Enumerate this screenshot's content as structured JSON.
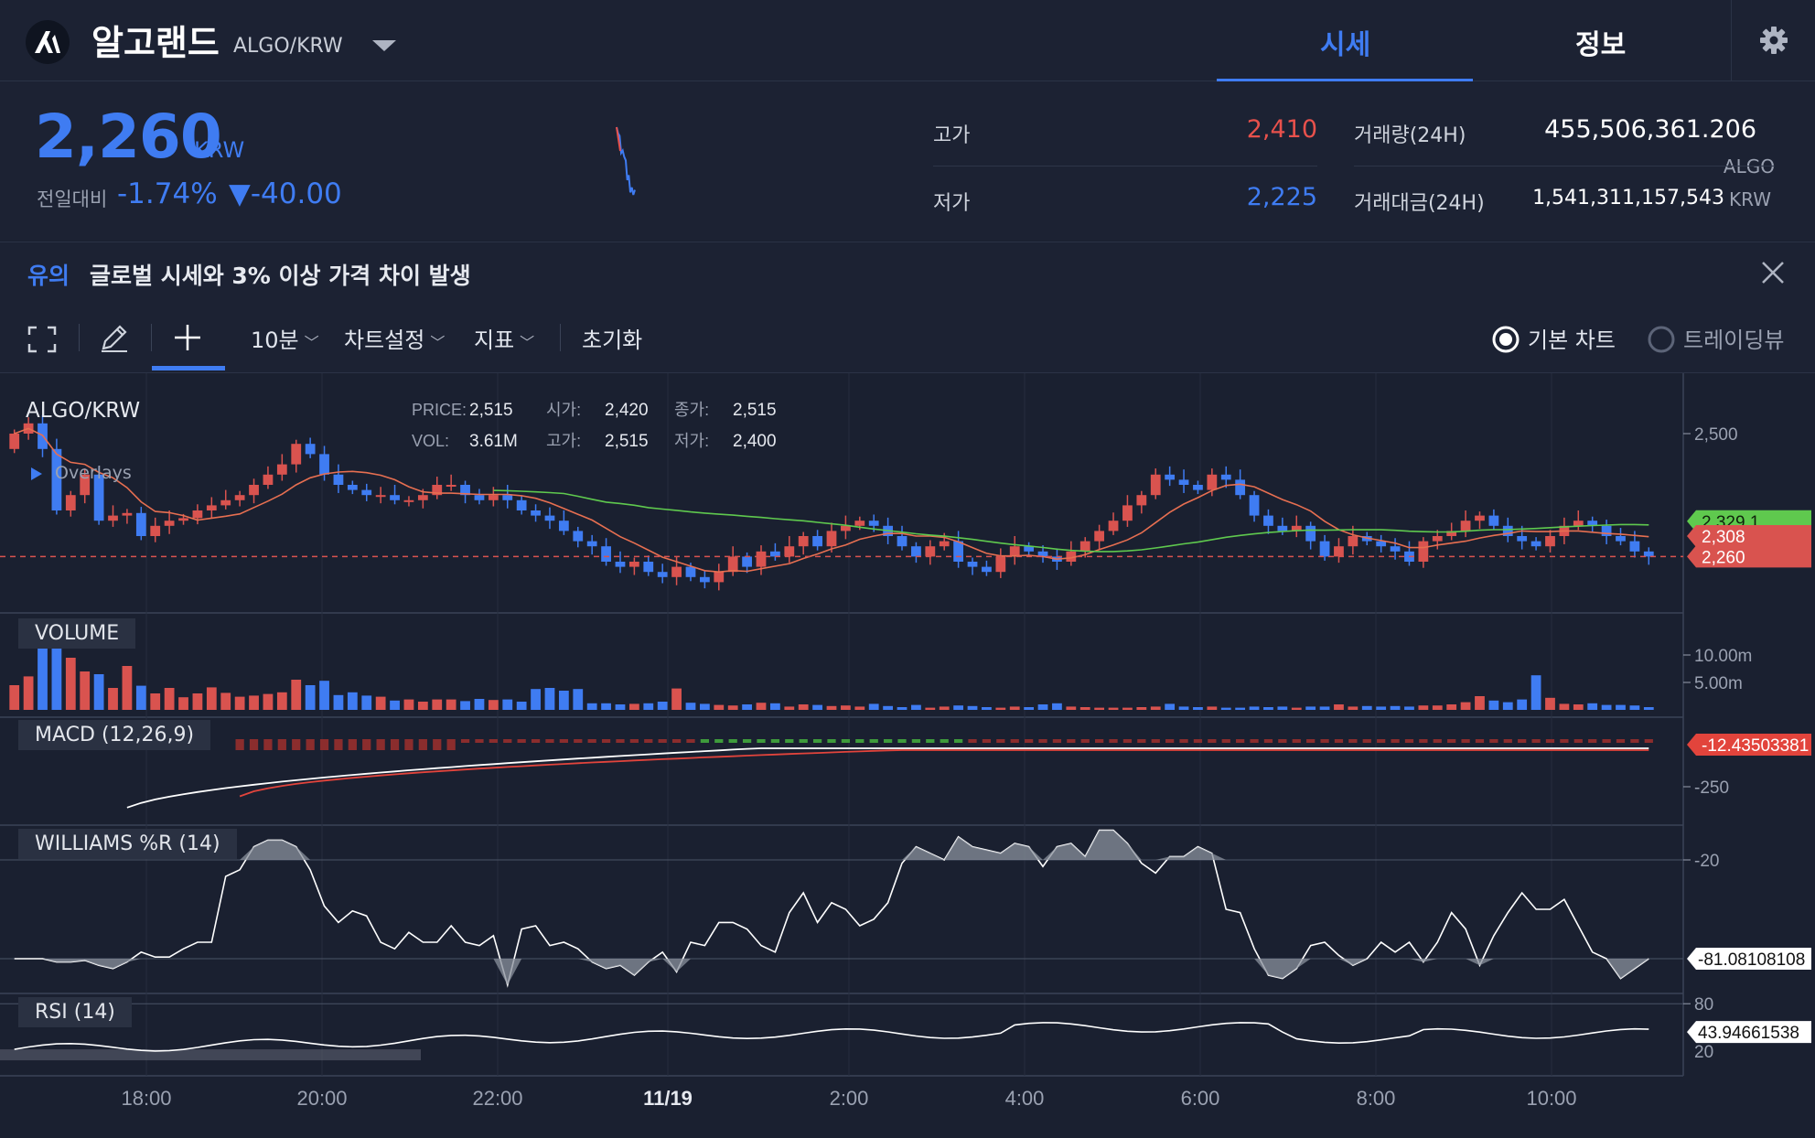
{
  "header": {
    "coin_name": "알고랜드",
    "pair": "ALGO/KRW",
    "tabs": [
      {
        "label": "시세",
        "active": true
      },
      {
        "label": "정보",
        "active": false
      }
    ]
  },
  "summary": {
    "price": "2,260",
    "unit": "KRW",
    "change_label": "전일대비",
    "change_rate": "-1.74%",
    "change_amount": "▼-40.00",
    "high_label": "고가",
    "high_value": "2,410",
    "low_label": "저가",
    "low_value": "2,225",
    "volume_label": "거래량(24H)",
    "volume_value": "455,506,361.206",
    "volume_unit": "ALGO",
    "amount_label": "거래대금(24H)",
    "amount_value": "1,541,311,157,543",
    "amount_unit": "KRW",
    "sparkline": [
      2515,
      2490,
      2480,
      2410,
      2420,
      2395,
      2380,
      2300,
      2320,
      2250,
      2270,
      2240,
      2260
    ]
  },
  "notice": {
    "tag": "유의",
    "text": "글로벌 시세와 3% 이상 가격 차이 발생"
  },
  "toolbar": {
    "interval": "10분",
    "chart_settings": "차트설정",
    "indicators": "지표",
    "reset": "초기화",
    "mode_basic": "기본 차트",
    "mode_tradingview": "트레이딩뷰",
    "mode_selected": "기본 차트"
  },
  "chart": {
    "symbol": "ALGO/KRW",
    "overlays_label": "Overlays",
    "ohlc": {
      "price_key": "PRICE:",
      "price": "2,515",
      "open_key": "시가:",
      "open": "2,420",
      "close_key": "종가:",
      "close": "2,515",
      "vol_key": "VOL:",
      "vol": "3.61M",
      "high_key": "고가:",
      "high": "2,515",
      "low_key": "저가:",
      "low": "2,400"
    },
    "time_labels": [
      "18:00",
      "20:00",
      "22:00",
      "11/19",
      "2:00",
      "4:00",
      "6:00",
      "8:00",
      "10:00"
    ],
    "price_axis": [
      "2,500"
    ],
    "volume_axis": [
      "10.00m",
      "5.00m"
    ],
    "macd_axis": [
      "-250"
    ],
    "williams_axis": [
      "-20"
    ],
    "rsi_axis": [
      "80",
      "20"
    ],
    "tags": {
      "ma_long": "2,329.1",
      "ma_short": "2,308",
      "last_price": "2,260",
      "macd": "-12.43503381",
      "williams": "-81.08108108",
      "rsi": "43.94661538"
    },
    "panes": {
      "volume": "VOLUME",
      "macd": "MACD (12,26,9)",
      "williams": "WILLIAMS %R (14)",
      "rsi": "RSI (14)"
    }
  },
  "chart_data": {
    "type": "candlestick",
    "interval": "10분",
    "closes": [
      2500,
      2520,
      2470,
      2350,
      2380,
      2420,
      2330,
      2340,
      2345,
      2300,
      2320,
      2330,
      2335,
      2350,
      2360,
      2370,
      2380,
      2400,
      2420,
      2440,
      2480,
      2460,
      2420,
      2400,
      2390,
      2380,
      2380,
      2370,
      2370,
      2380,
      2400,
      2400,
      2380,
      2370,
      2380,
      2370,
      2350,
      2340,
      2330,
      2310,
      2290,
      2280,
      2250,
      2240,
      2250,
      2230,
      2220,
      2240,
      2220,
      2210,
      2230,
      2260,
      2240,
      2270,
      2260,
      2280,
      2300,
      2280,
      2310,
      2320,
      2330,
      2320,
      2300,
      2280,
      2260,
      2280,
      2290,
      2250,
      2240,
      2230,
      2260,
      2280,
      2270,
      2260,
      2250,
      2270,
      2290,
      2310,
      2330,
      2360,
      2380,
      2420,
      2410,
      2400,
      2390,
      2420,
      2410,
      2380,
      2340,
      2320,
      2310,
      2320,
      2290,
      2260,
      2280,
      2300,
      2290,
      2280,
      2270,
      2250,
      2290,
      2300,
      2310,
      2330,
      2340,
      2320,
      2300,
      2290,
      2280,
      2300,
      2320,
      2330,
      2320,
      2300,
      2290,
      2270,
      2260
    ],
    "volumes_m": [
      4.5,
      6.1,
      12.0,
      11.5,
      9.5,
      7.0,
      6.5,
      4.0,
      8.0,
      4.4,
      3.0,
      4.0,
      2.3,
      3.0,
      4.1,
      3.1,
      2.4,
      2.6,
      2.9,
      3.2,
      5.5,
      4.5,
      5.3,
      2.7,
      3.2,
      2.6,
      2.4,
      1.7,
      1.9,
      1.5,
      1.9,
      1.9,
      1.6,
      2.0,
      1.8,
      1.9,
      1.5,
      3.8,
      4.0,
      3.5,
      3.8,
      1.2,
      1.2,
      1.0,
      1.1,
      1.2,
      1.5,
      3.9,
      1.3,
      1.1,
      0.9,
      0.8,
      1.0,
      1.3,
      1.2,
      0.6,
      1.0,
      0.9,
      0.7,
      0.8,
      0.6,
      1.1,
      0.7,
      0.5,
      0.9,
      0.4,
      0.6,
      0.8,
      0.7,
      0.5,
      0.4,
      0.6,
      0.5,
      1.0,
      1.2,
      0.6,
      0.5,
      0.4,
      0.4,
      0.4,
      0.5,
      0.6,
      1.1,
      0.6,
      0.5,
      0.6,
      0.4,
      0.4,
      0.6,
      0.5,
      0.6,
      0.4,
      0.6,
      0.6,
      1.0,
      0.6,
      0.7,
      0.6,
      0.7,
      0.6,
      0.8,
      0.8,
      1.0,
      1.4,
      2.5,
      1.7,
      1.4,
      1.9,
      6.3,
      2.2,
      1.1,
      1.0,
      1.2,
      0.9,
      0.9,
      0.8,
      0.5
    ],
    "ylim": [
      2150,
      2600
    ]
  }
}
